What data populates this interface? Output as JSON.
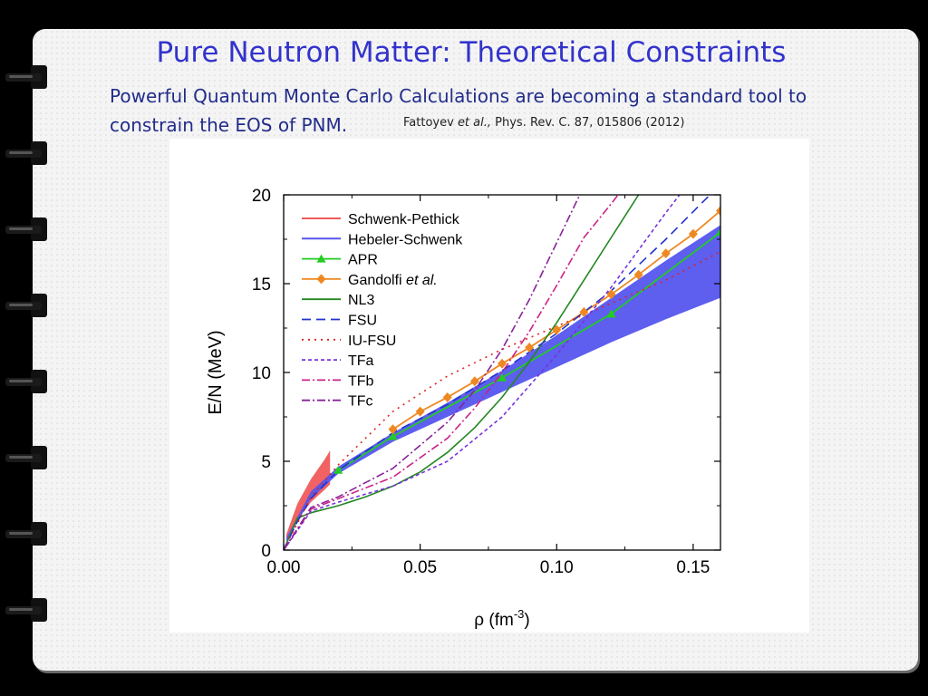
{
  "slide": {
    "title": "Pure Neutron Matter: Theoretical Constraints",
    "subtitle_line1": "Powerful Quantum Monte Carlo Calculations are becoming a standard tool to",
    "subtitle_line2": "constrain the EOS of PNM.",
    "citation_author": "Fattoyev",
    "citation_etal": "et al.,",
    "citation_ref": "Phys. Rev. C. 87, 015806 (2012)"
  },
  "chart_data": {
    "type": "line",
    "xlabel_symbol": "ρ",
    "xlabel_unit": "(fm",
    "xlabel_exp": "-3",
    "xlabel_close": ")",
    "ylabel": "E/N (MeV)",
    "xlim": [
      0,
      0.16
    ],
    "ylim": [
      0,
      20
    ],
    "xticks": [
      "0.00",
      "0.05",
      "0.10",
      "0.15"
    ],
    "xtick_values": [
      0,
      0.05,
      0.1,
      0.15
    ],
    "yticks": [
      "0",
      "5",
      "10",
      "15",
      "20"
    ],
    "ytick_values": [
      0,
      5,
      10,
      15,
      20
    ],
    "legend_position": "top-left",
    "bands": [
      {
        "name": "Schwenk-Pethick",
        "color": "#f05a5a",
        "x": [
          0.001,
          0.005,
          0.01,
          0.015,
          0.017
        ],
        "lower": [
          0.5,
          1.7,
          2.7,
          3.4,
          3.7
        ],
        "upper": [
          0.9,
          2.6,
          4.0,
          5.1,
          5.6
        ]
      },
      {
        "name": "Hebeler-Schwenk",
        "color": "#5555ee",
        "x": [
          0.001,
          0.01,
          0.02,
          0.04,
          0.06,
          0.08,
          0.1,
          0.12,
          0.14,
          0.16
        ],
        "lower": [
          0.5,
          2.9,
          4.3,
          6.1,
          7.5,
          8.9,
          10.3,
          11.7,
          13.0,
          14.2
        ],
        "upper": [
          0.7,
          3.3,
          4.7,
          6.6,
          8.3,
          10.1,
          12.1,
          14.2,
          16.3,
          18.3
        ]
      }
    ],
    "series": [
      {
        "name": "APR",
        "color": "#22cc22",
        "dash": "",
        "marker": "triangle",
        "x": [
          0.02,
          0.04,
          0.08,
          0.12,
          0.16
        ],
        "y": [
          4.5,
          6.4,
          9.7,
          13.3,
          17.9
        ]
      },
      {
        "name": "Gandolfi",
        "name_suffix": "et al.",
        "color": "#ee8822",
        "dash": "",
        "marker": "diamond",
        "x": [
          0.04,
          0.05,
          0.06,
          0.07,
          0.08,
          0.09,
          0.1,
          0.11,
          0.12,
          0.13,
          0.14,
          0.15,
          0.16
        ],
        "y": [
          6.8,
          7.8,
          8.6,
          9.5,
          10.5,
          11.4,
          12.4,
          13.4,
          14.4,
          15.5,
          16.7,
          17.8,
          19.1
        ]
      },
      {
        "name": "NL3",
        "color": "#228822",
        "dash": "",
        "x": [
          0.0,
          0.005,
          0.01,
          0.02,
          0.03,
          0.04,
          0.05,
          0.06,
          0.07,
          0.08,
          0.09,
          0.1,
          0.11,
          0.12,
          0.13,
          0.14
        ],
        "y": [
          0.0,
          1.8,
          2.1,
          2.5,
          3.0,
          3.6,
          4.4,
          5.5,
          6.9,
          8.6,
          10.6,
          12.8,
          15.2,
          17.6,
          20.0,
          22.5
        ]
      },
      {
        "name": "FSU",
        "color": "#2233cc",
        "dash": "10,6",
        "x": [
          0.0,
          0.005,
          0.01,
          0.02,
          0.04,
          0.06,
          0.08,
          0.1,
          0.12,
          0.14,
          0.16
        ],
        "y": [
          0.0,
          1.6,
          2.9,
          4.5,
          6.6,
          8.2,
          10.1,
          12.2,
          14.6,
          17.5,
          20.6
        ]
      },
      {
        "name": "IU-FSU",
        "color": "#dd2222",
        "dash": "2,5",
        "x": [
          0.0,
          0.01,
          0.02,
          0.04,
          0.06,
          0.08,
          0.1,
          0.12,
          0.14,
          0.16
        ],
        "y": [
          0.0,
          3.0,
          4.8,
          7.8,
          9.8,
          11.3,
          12.6,
          13.9,
          15.2,
          16.8
        ]
      },
      {
        "name": "TFa",
        "color": "#7733dd",
        "dash": "4,3",
        "x": [
          0.0,
          0.01,
          0.02,
          0.04,
          0.06,
          0.08,
          0.1,
          0.12,
          0.14,
          0.15
        ],
        "y": [
          0.0,
          2.2,
          2.7,
          3.6,
          5.0,
          7.5,
          11.0,
          14.8,
          19.0,
          21.0
        ]
      },
      {
        "name": "TFb",
        "color": "#cc2288",
        "dash": "9,3,2,3",
        "x": [
          0.0,
          0.01,
          0.02,
          0.04,
          0.06,
          0.07,
          0.08,
          0.09,
          0.1,
          0.11,
          0.12,
          0.13
        ],
        "y": [
          0.0,
          2.3,
          2.9,
          4.1,
          6.3,
          8.0,
          10.0,
          12.3,
          14.9,
          17.6,
          19.5,
          21.5
        ]
      },
      {
        "name": "TFc",
        "color": "#882299",
        "dash": "9,3,2,3",
        "x": [
          0.0,
          0.01,
          0.02,
          0.04,
          0.06,
          0.07,
          0.08,
          0.09,
          0.1,
          0.11
        ],
        "y": [
          0.0,
          2.4,
          3.0,
          4.6,
          7.2,
          9.0,
          11.3,
          14.1,
          17.3,
          20.5
        ]
      }
    ],
    "legend_order": [
      "Schwenk-Pethick",
      "Hebeler-Schwenk",
      "APR",
      "Gandolfi",
      "NL3",
      "FSU",
      "IU-FSU",
      "TFa",
      "TFb",
      "TFc"
    ]
  }
}
